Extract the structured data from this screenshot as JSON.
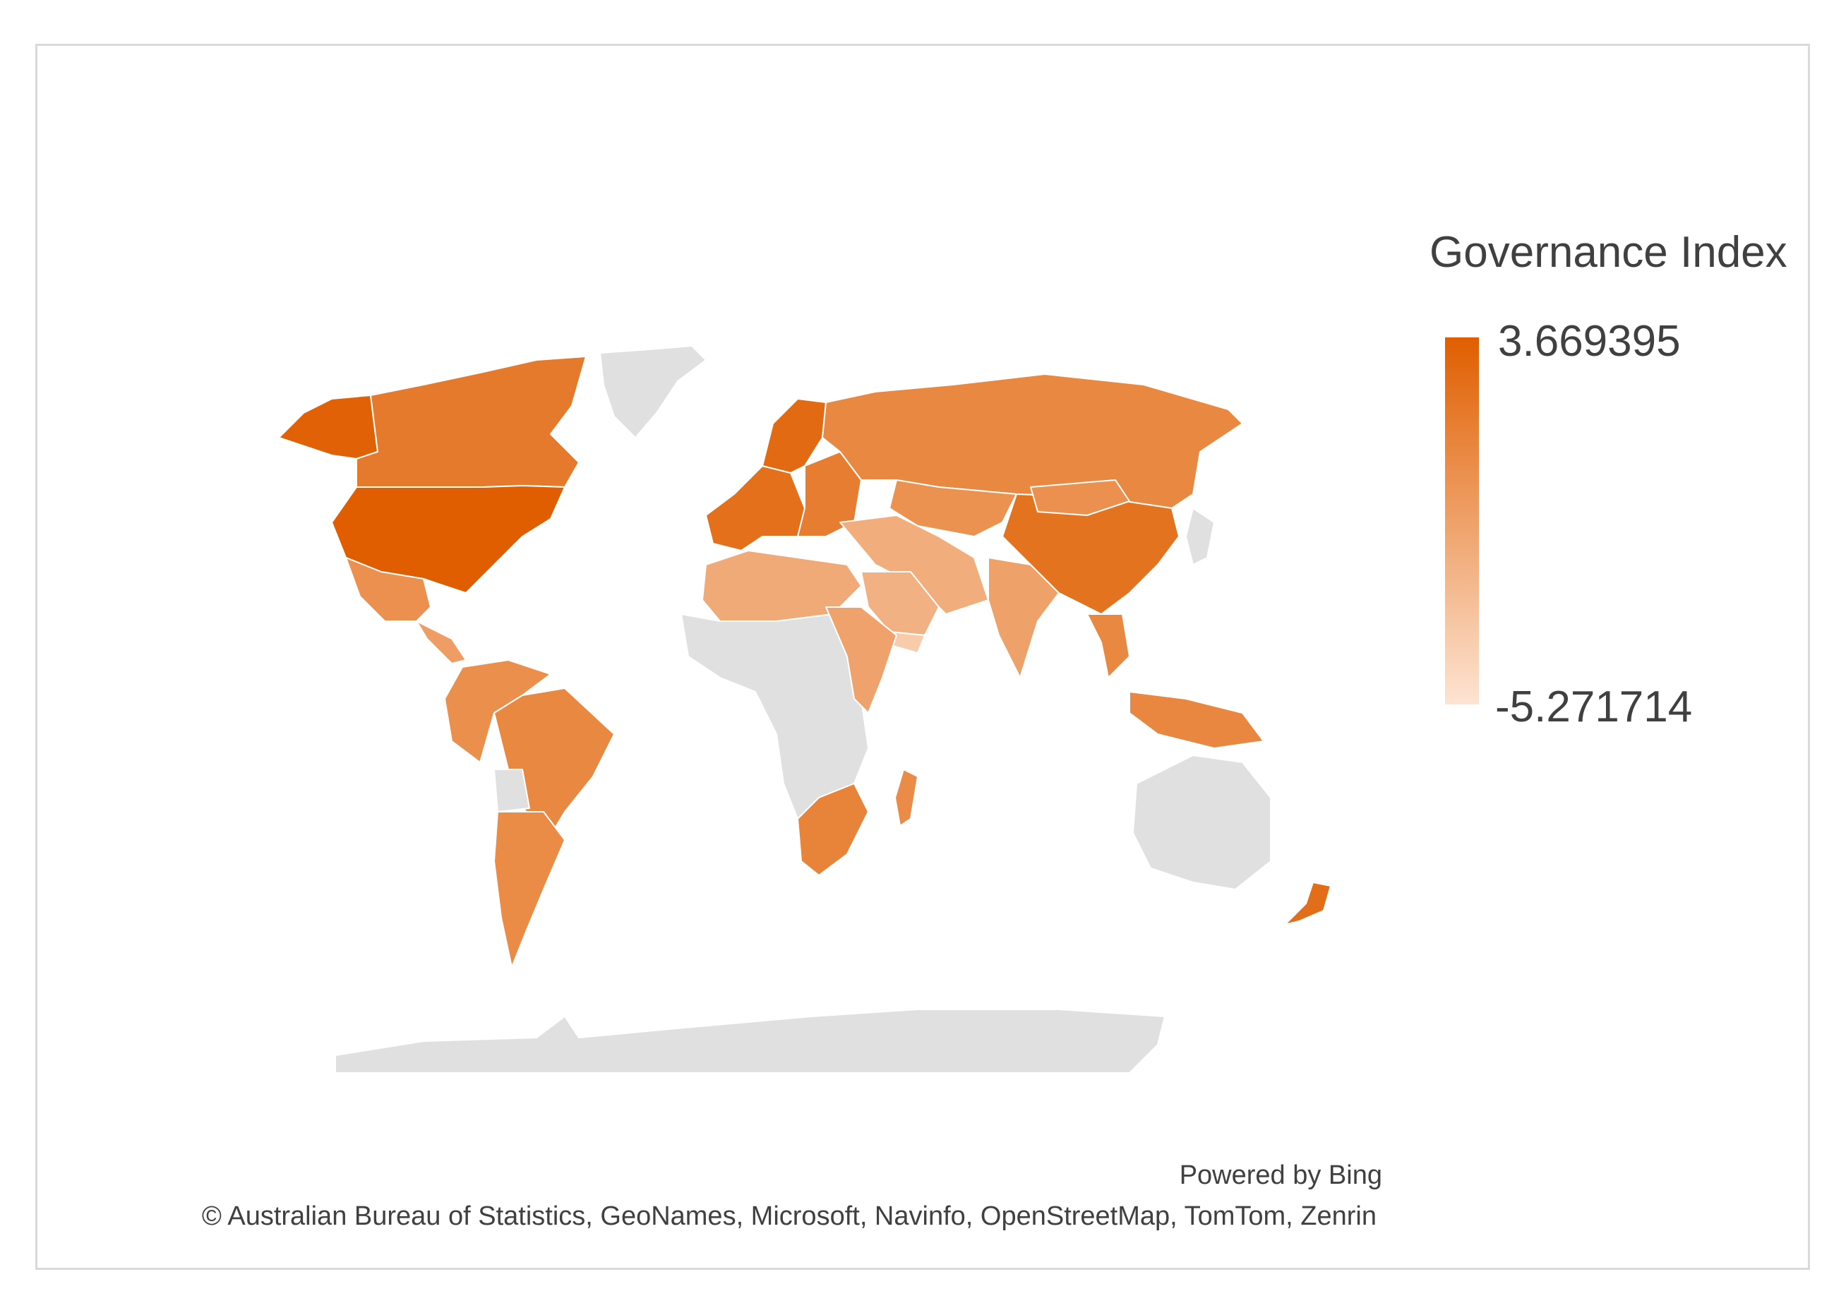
{
  "legend": {
    "title": "Governance Index",
    "max_label": "3.669395",
    "min_label": "-5.271714",
    "max_value": 3.669395,
    "min_value": -5.271714,
    "color_high": "#e05e00",
    "color_low": "#fde4d2",
    "no_data_color": "#e0e0e0"
  },
  "attribution": {
    "powered_by": "Powered by Bing",
    "copyright": "© Australian Bureau of Statistics, GeoNames, Microsoft, Navinfo, OpenStreetMap, TomTom, Zenrin"
  },
  "chart_data": {
    "type": "choropleth",
    "metric": "Governance Index",
    "scale": [
      -5.271714,
      3.669395
    ],
    "regions": [
      {
        "name": "alaska",
        "value": 3.4
      },
      {
        "name": "canada",
        "value": 1.8
      },
      {
        "name": "united-states",
        "value": 3.669395
      },
      {
        "name": "greenland",
        "value": null
      },
      {
        "name": "mexico",
        "value": 0.3
      },
      {
        "name": "central-america",
        "value": -0.6
      },
      {
        "name": "northern-south-america",
        "value": 0.4
      },
      {
        "name": "brazil",
        "value": 0.9
      },
      {
        "name": "bolivia",
        "value": null
      },
      {
        "name": "argentina-chile",
        "value": 0.7
      },
      {
        "name": "western-europe",
        "value": 2.5
      },
      {
        "name": "scandinavia",
        "value": 2.9
      },
      {
        "name": "eastern-europe",
        "value": 1.6
      },
      {
        "name": "russia",
        "value": 0.9
      },
      {
        "name": "central-asia",
        "value": 0.2
      },
      {
        "name": "middle-east",
        "value": -1.6
      },
      {
        "name": "arabian-peninsula",
        "value": -1.9
      },
      {
        "name": "yemen",
        "value": -3.6
      },
      {
        "name": "north-africa",
        "value": -1.4
      },
      {
        "name": "sub-saharan-africa",
        "value": null
      },
      {
        "name": "east-africa",
        "value": -0.9
      },
      {
        "name": "southern-africa",
        "value": 1.2
      },
      {
        "name": "madagascar",
        "value": 0.6
      },
      {
        "name": "india",
        "value": -0.8
      },
      {
        "name": "china",
        "value": 2.3
      },
      {
        "name": "mongolia",
        "value": 0.3
      },
      {
        "name": "southeast-asia",
        "value": 0.9
      },
      {
        "name": "indonesia",
        "value": 1.0
      },
      {
        "name": "japan",
        "value": null
      },
      {
        "name": "australia",
        "value": null
      },
      {
        "name": "new-zealand",
        "value": 2.6
      },
      {
        "name": "antarctica",
        "value": null
      }
    ]
  }
}
